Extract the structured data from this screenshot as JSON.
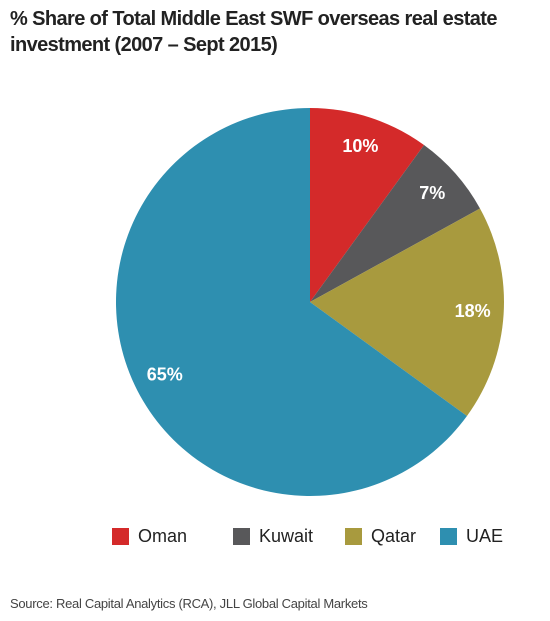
{
  "chart_data": {
    "type": "pie",
    "title": "% Share of Total Middle East SWF overseas real estate investment (2007 – Sept 2015)",
    "categories": [
      "Oman",
      "Kuwait",
      "Qatar",
      "UAE"
    ],
    "values": [
      10,
      7,
      18,
      65
    ],
    "value_labels": [
      "10%",
      "7%",
      "18%",
      "65%"
    ],
    "colors": [
      "#d42a2a",
      "#58585a",
      "#a89a3e",
      "#2e8fb0"
    ],
    "source": "Source: Real Capital Analytics (RCA), JLL Global Capital Markets"
  }
}
